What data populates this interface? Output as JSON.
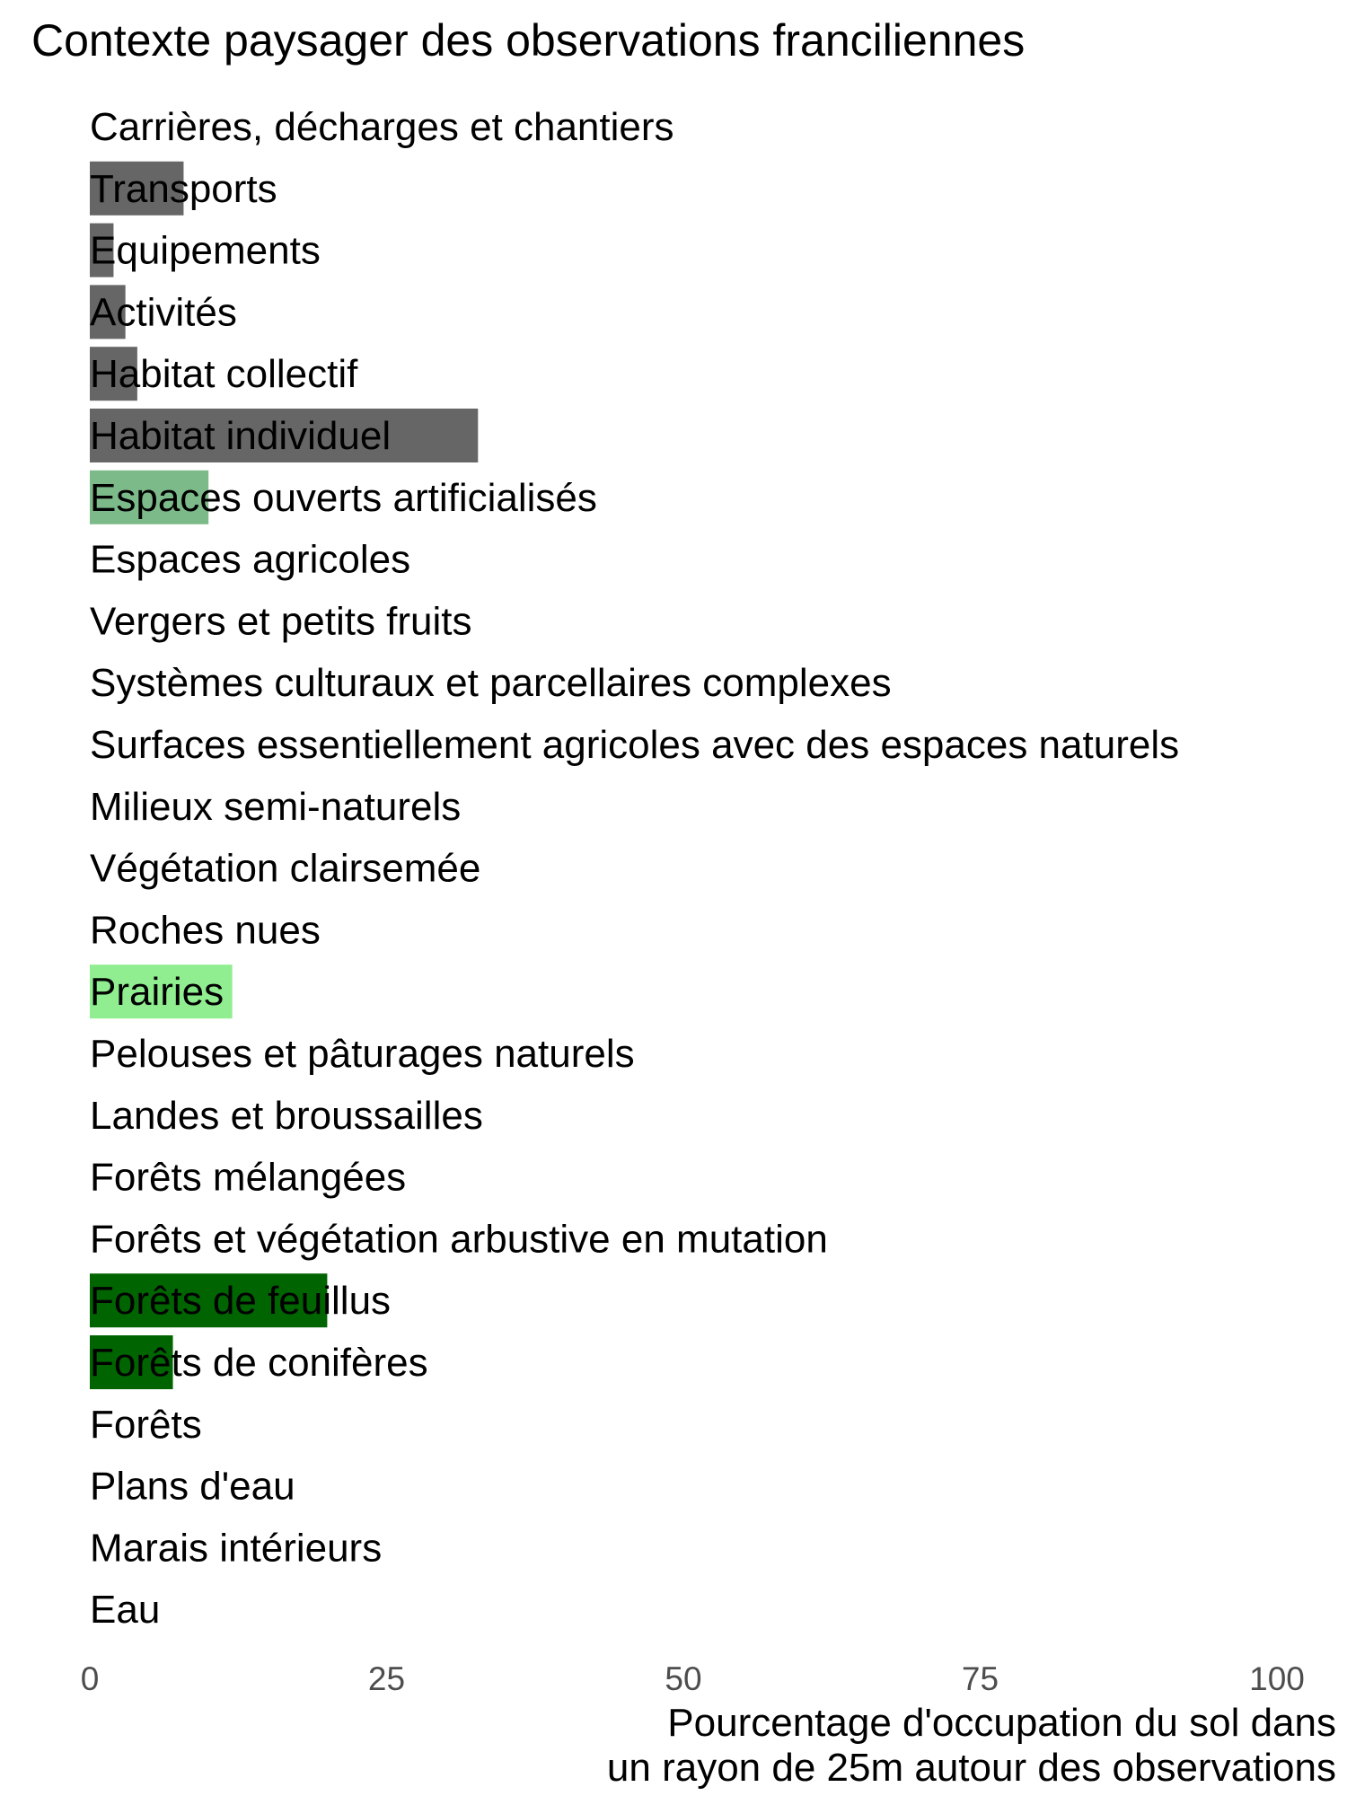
{
  "chart_data": {
    "type": "bar",
    "orientation": "horizontal",
    "title": "Contexte paysager des observations franciliennes",
    "xlabel": [
      "Pourcentage d'occupation du sol dans",
      "un rayon de 25m autour des observations"
    ],
    "ylabel": "",
    "xlim": [
      0,
      100
    ],
    "xticks": [
      "0",
      "25",
      "50",
      "75",
      "100"
    ],
    "grid": false,
    "categories": [
      "Carrières, décharges et chantiers",
      "Transports",
      "Equipements",
      "Activités",
      "Habitat collectif",
      "Habitat individuel",
      "Espaces ouverts artificialisés",
      "Espaces agricoles",
      "Vergers et petits fruits",
      "Systèmes culturaux et parcellaires complexes",
      "Surfaces essentiellement agricoles avec des espaces naturels",
      "Milieux semi-naturels",
      "Végétation clairsemée",
      "Roches nues",
      "Prairies",
      "Pelouses et pâturages naturels",
      "Landes et broussailles",
      "Forêts mélangées",
      "Forêts et végétation arbustive en mutation",
      "Forêts de feuillus",
      "Forêts de conifères",
      "Forêts",
      "Plans d'eau",
      "Marais intérieurs",
      "Eau"
    ],
    "values": [
      0,
      7.9,
      2.0,
      3.0,
      4.0,
      32.7,
      10.0,
      0,
      0,
      0,
      0,
      0,
      0,
      0,
      12.0,
      0,
      0,
      0,
      0,
      20.0,
      7.0,
      0,
      0,
      0,
      0
    ],
    "colors": [
      "#666666",
      "#666666",
      "#666666",
      "#666666",
      "#666666",
      "#666666",
      "#7dba8a",
      "#666666",
      "#666666",
      "#666666",
      "#666666",
      "#666666",
      "#666666",
      "#666666",
      "#90ee90",
      "#666666",
      "#666666",
      "#666666",
      "#666666",
      "#006400",
      "#006400",
      "#006400",
      "#666666",
      "#666666",
      "#666666"
    ]
  }
}
